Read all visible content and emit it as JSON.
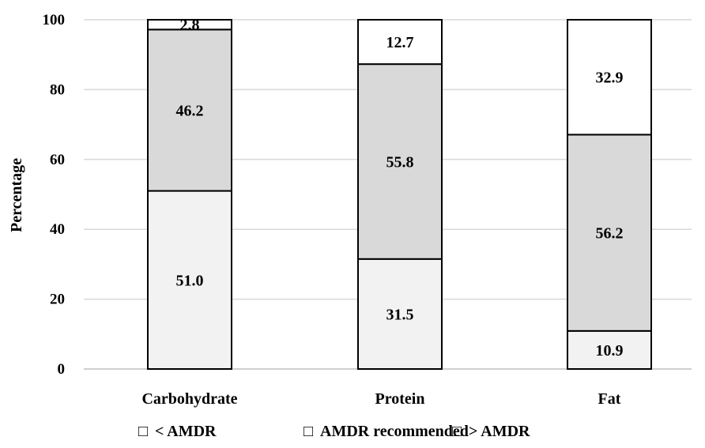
{
  "chart_data": {
    "type": "bar",
    "stacked": true,
    "title": "",
    "xlabel": "",
    "ylabel": "Percentage",
    "ylim": [
      0,
      100
    ],
    "yticks": [
      0,
      20,
      40,
      60,
      80,
      100
    ],
    "grid": true,
    "legend_position": "bottom",
    "categories": [
      "Carbohydrate",
      "Protein",
      "Fat"
    ],
    "series": [
      {
        "name": "< AMDR",
        "values": [
          51.0,
          31.5,
          10.9
        ],
        "color": "#f2f2f2"
      },
      {
        "name": "AMDR recommended",
        "values": [
          46.2,
          55.8,
          56.2
        ],
        "color": "#d9d9d9"
      },
      {
        "name": "> AMDR",
        "values": [
          2.8,
          12.7,
          32.9
        ],
        "color": "#ffffff"
      }
    ],
    "legend_markers": [
      "□",
      "□",
      "□"
    ],
    "data_labels": [
      [
        "51.0",
        "31.5",
        "10.9"
      ],
      [
        "46.2",
        "55.8",
        "56.2"
      ],
      [
        "2.8",
        "12.7",
        "32.9"
      ]
    ],
    "colors": {
      "gridline": "#d9d9d9",
      "axis": "#bfbfbf",
      "bar_border": "#000000"
    }
  }
}
